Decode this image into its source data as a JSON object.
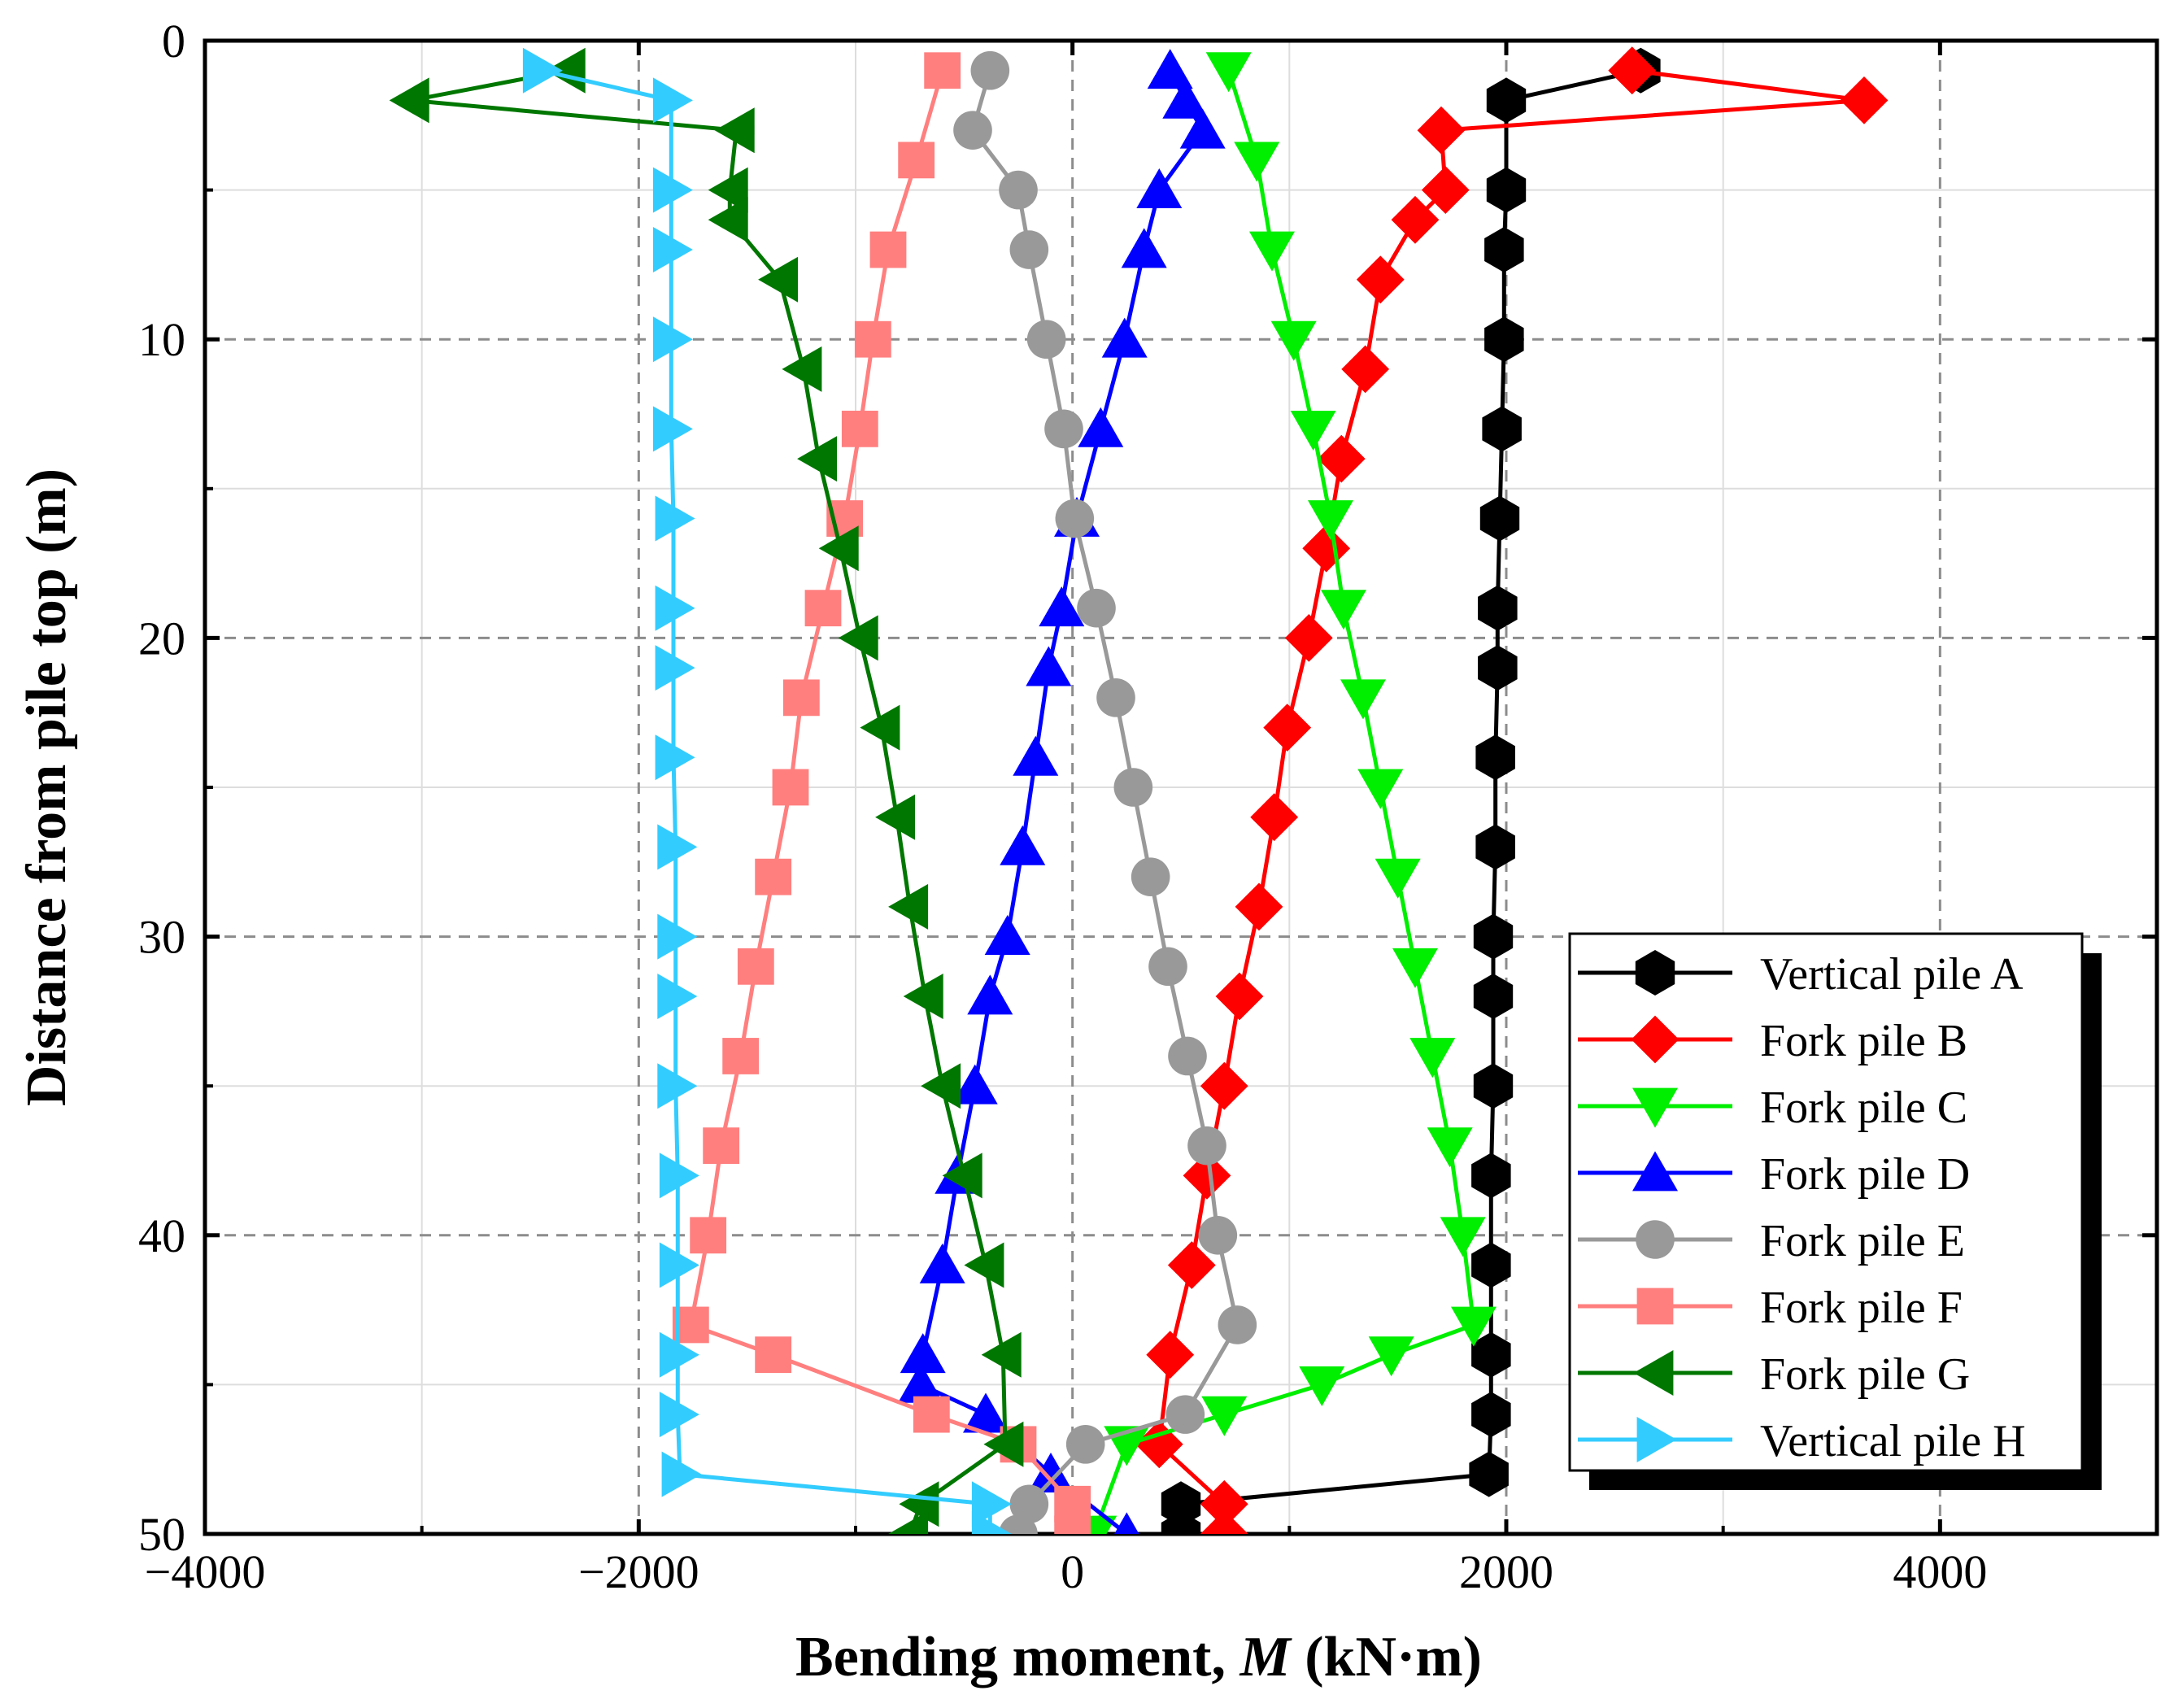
{
  "chart_data": {
    "type": "line",
    "title": "",
    "xlabel": "Bending moment, ",
    "xlabel_var": "M",
    "xlabel_unit": " (kN·m)",
    "ylabel": "Distance from pile top (m)",
    "xlim": [
      -4000,
      5000
    ],
    "ylim": [
      0,
      50
    ],
    "y_inverted": true,
    "grid": true,
    "x_ticks": [
      -4000,
      -2000,
      0,
      2000,
      4000
    ],
    "x_tick_labels": [
      "−4000",
      "−2000",
      "0",
      "2000",
      "4000"
    ],
    "y_ticks": [
      0,
      10,
      20,
      30,
      40,
      50
    ],
    "y_tick_labels": [
      "0",
      "10",
      "20",
      "30",
      "40",
      "50"
    ],
    "legend_position": "bottom-right",
    "series": [
      {
        "name": "Vertical pile A",
        "color": "#000000",
        "marker": "hexagon",
        "points": [
          [
            2620,
            1
          ],
          [
            2000,
            2
          ],
          [
            2000,
            5
          ],
          [
            1990,
            7
          ],
          [
            1990,
            10
          ],
          [
            1980,
            13
          ],
          [
            1970,
            16
          ],
          [
            1960,
            19
          ],
          [
            1960,
            21
          ],
          [
            1950,
            24
          ],
          [
            1950,
            27
          ],
          [
            1940,
            30
          ],
          [
            1940,
            32
          ],
          [
            1940,
            35
          ],
          [
            1930,
            38
          ],
          [
            1930,
            41
          ],
          [
            1930,
            44
          ],
          [
            1930,
            46
          ],
          [
            1920,
            48
          ],
          [
            500,
            49
          ],
          [
            500,
            50
          ]
        ]
      },
      {
        "name": "Fork pile B",
        "color": "#ff0000",
        "marker": "diamond",
        "points": [
          [
            2580,
            1
          ],
          [
            3650,
            2
          ],
          [
            1700,
            3
          ],
          [
            1720,
            5
          ],
          [
            1580,
            6
          ],
          [
            1420,
            8
          ],
          [
            1350,
            11
          ],
          [
            1240,
            14
          ],
          [
            1170,
            17
          ],
          [
            1090,
            20
          ],
          [
            990,
            23
          ],
          [
            930,
            26
          ],
          [
            860,
            29
          ],
          [
            770,
            32
          ],
          [
            700,
            35
          ],
          [
            620,
            38
          ],
          [
            550,
            41
          ],
          [
            450,
            44
          ],
          [
            400,
            47
          ],
          [
            700,
            49
          ],
          [
            700,
            50
          ]
        ]
      },
      {
        "name": "Fork pile C",
        "color": "#00ee00",
        "marker": "triangle-down",
        "points": [
          [
            720,
            1
          ],
          [
            850,
            4
          ],
          [
            920,
            7
          ],
          [
            1020,
            10
          ],
          [
            1110,
            13
          ],
          [
            1190,
            16
          ],
          [
            1250,
            19
          ],
          [
            1340,
            22
          ],
          [
            1420,
            25
          ],
          [
            1500,
            28
          ],
          [
            1580,
            31
          ],
          [
            1660,
            34
          ],
          [
            1740,
            37
          ],
          [
            1800,
            40
          ],
          [
            1850,
            43
          ],
          [
            1470,
            44
          ],
          [
            1150,
            45
          ],
          [
            700,
            46
          ],
          [
            250,
            47
          ],
          [
            100,
            50
          ]
        ]
      },
      {
        "name": "Fork pile D",
        "color": "#0000ff",
        "marker": "triangle-up",
        "points": [
          [
            450,
            1
          ],
          [
            520,
            2
          ],
          [
            600,
            3
          ],
          [
            400,
            5
          ],
          [
            330,
            7
          ],
          [
            240,
            10
          ],
          [
            130,
            13
          ],
          [
            20,
            16
          ],
          [
            -50,
            19
          ],
          [
            -110,
            21
          ],
          [
            -170,
            24
          ],
          [
            -230,
            27
          ],
          [
            -300,
            30
          ],
          [
            -380,
            32
          ],
          [
            -450,
            35
          ],
          [
            -530,
            38
          ],
          [
            -600,
            41
          ],
          [
            -690,
            44
          ],
          [
            -700,
            45
          ],
          [
            -400,
            46
          ],
          [
            -100,
            48
          ],
          [
            250,
            50
          ]
        ]
      },
      {
        "name": "Fork pile E",
        "color": "#999999",
        "marker": "circle",
        "points": [
          [
            -380,
            1
          ],
          [
            -460,
            3
          ],
          [
            -250,
            5
          ],
          [
            -200,
            7
          ],
          [
            -120,
            10
          ],
          [
            -40,
            13
          ],
          [
            10,
            16
          ],
          [
            110,
            19
          ],
          [
            200,
            22
          ],
          [
            280,
            25
          ],
          [
            360,
            28
          ],
          [
            440,
            31
          ],
          [
            530,
            34
          ],
          [
            620,
            37
          ],
          [
            670,
            40
          ],
          [
            760,
            43
          ],
          [
            520,
            46
          ],
          [
            60,
            47
          ],
          [
            -200,
            49
          ],
          [
            -250,
            50
          ]
        ]
      },
      {
        "name": "Fork pile F",
        "color": "#ff7f7f",
        "marker": "square",
        "points": [
          [
            -600,
            1
          ],
          [
            -720,
            4
          ],
          [
            -850,
            7
          ],
          [
            -920,
            10
          ],
          [
            -980,
            13
          ],
          [
            -1050,
            16
          ],
          [
            -1150,
            19
          ],
          [
            -1250,
            22
          ],
          [
            -1300,
            25
          ],
          [
            -1380,
            28
          ],
          [
            -1460,
            31
          ],
          [
            -1530,
            34
          ],
          [
            -1620,
            37
          ],
          [
            -1680,
            40
          ],
          [
            -1760,
            43
          ],
          [
            -1380,
            44
          ],
          [
            -650,
            46
          ],
          [
            -250,
            47
          ],
          [
            0,
            49
          ],
          [
            0,
            50
          ]
        ]
      },
      {
        "name": "Fork pile G",
        "color": "#007700",
        "marker": "triangle-left",
        "points": [
          [
            -2330,
            1
          ],
          [
            -3050,
            2
          ],
          [
            -1550,
            3
          ],
          [
            -1580,
            5
          ],
          [
            -1580,
            6
          ],
          [
            -1350,
            8
          ],
          [
            -1240,
            11
          ],
          [
            -1170,
            14
          ],
          [
            -1070,
            17
          ],
          [
            -980,
            20
          ],
          [
            -880,
            23
          ],
          [
            -810,
            26
          ],
          [
            -750,
            29
          ],
          [
            -680,
            32
          ],
          [
            -600,
            35
          ],
          [
            -500,
            38
          ],
          [
            -400,
            41
          ],
          [
            -320,
            44
          ],
          [
            -310,
            47
          ],
          [
            -700,
            49
          ],
          [
            -750,
            50
          ]
        ]
      },
      {
        "name": "Vertical pile H",
        "color": "#33ccff",
        "marker": "triangle-right",
        "points": [
          [
            -2450,
            1
          ],
          [
            -1850,
            2
          ],
          [
            -1850,
            5
          ],
          [
            -1850,
            7
          ],
          [
            -1850,
            10
          ],
          [
            -1850,
            13
          ],
          [
            -1840,
            16
          ],
          [
            -1840,
            19
          ],
          [
            -1840,
            21
          ],
          [
            -1840,
            24
          ],
          [
            -1830,
            27
          ],
          [
            -1830,
            30
          ],
          [
            -1830,
            32
          ],
          [
            -1830,
            35
          ],
          [
            -1820,
            38
          ],
          [
            -1820,
            41
          ],
          [
            -1820,
            44
          ],
          [
            -1820,
            46
          ],
          [
            -1810,
            48
          ],
          [
            -380,
            49
          ],
          [
            -380,
            50
          ]
        ]
      }
    ]
  }
}
